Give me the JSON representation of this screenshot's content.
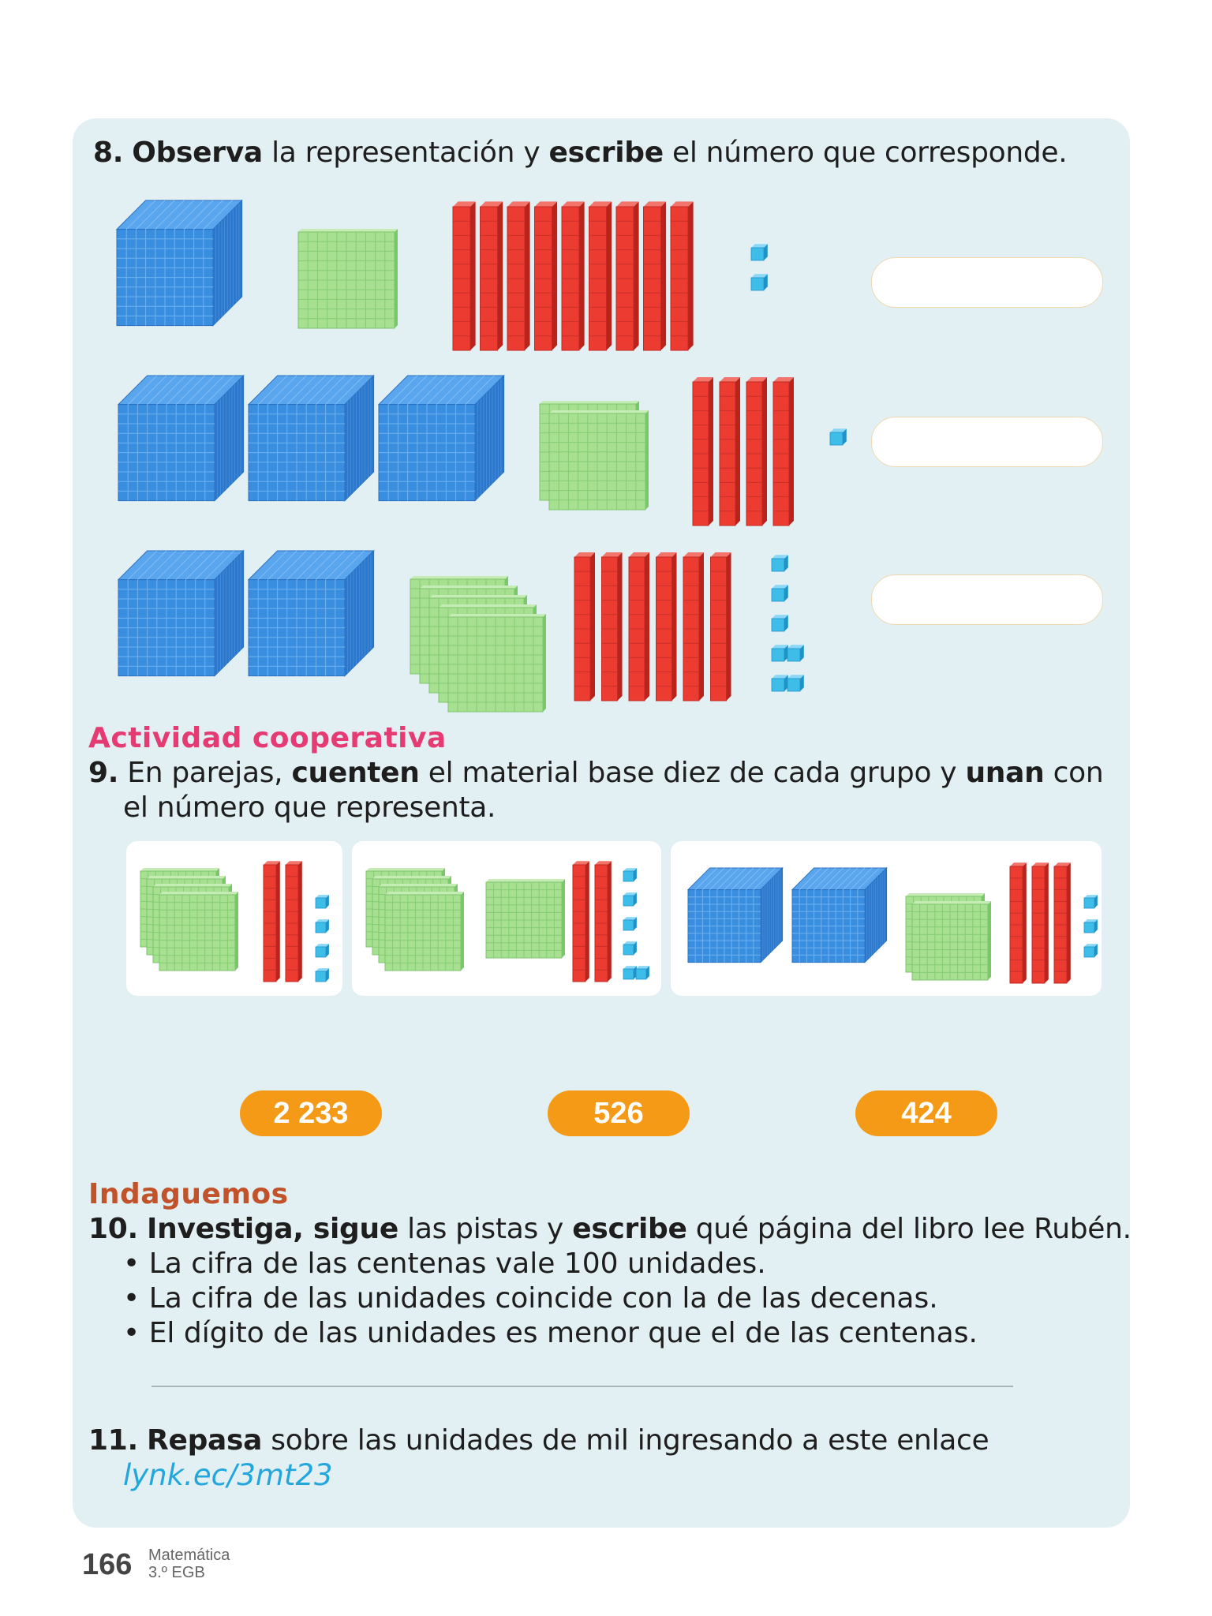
{
  "exercise8": {
    "number": "8.",
    "bold1": "Observa",
    "text1": " la representación y ",
    "bold2": "escribe",
    "text2": " el número que corresponde.",
    "rows": [
      {
        "thousands": 1,
        "hundreds": 1,
        "tens": 9,
        "units": 2
      },
      {
        "thousands": 3,
        "hundreds": 2,
        "tens": 4,
        "units": 1
      },
      {
        "thousands": 2,
        "hundreds": 5,
        "tens": 6,
        "units": 7
      }
    ]
  },
  "cooperative": {
    "heading": "Actividad cooperativa",
    "number": "9.",
    "text1": " En parejas, ",
    "bold1": "cuenten",
    "text2": " el material base diez de cada grupo y ",
    "bold2": "unan",
    "text3": " con",
    "line2": "el número que representa.",
    "groups": [
      {
        "thousands": 0,
        "hundreds": 4,
        "tens": 2,
        "units": 4
      },
      {
        "thousands": 0,
        "hundreds": 5,
        "tens": 2,
        "units": 6
      },
      {
        "thousands": 2,
        "hundreds": 2,
        "tens": 3,
        "units": 3
      }
    ],
    "options": [
      "2 233",
      "526",
      "424"
    ]
  },
  "inquiry": {
    "heading": "Indaguemos",
    "number": "10.",
    "bold1": "Investiga, sigue",
    "text1": " las pistas y ",
    "bold2": "escribe",
    "text2": " qué página del libro lee Rubén.",
    "clues": [
      "La cifra de las centenas vale 100 unidades.",
      "La cifra de las unidades coincide con la de las decenas.",
      "El dígito de las unidades es menor que el de las centenas."
    ]
  },
  "exercise11": {
    "number": "11.",
    "bold1": "Repasa",
    "text1": " sobre las unidades de mil ingresando a este enlace",
    "link": "lynk.ec/3mt23"
  },
  "footer": {
    "page": "166",
    "subject": "Matemática",
    "grade": "3.º EGB"
  },
  "colors": {
    "panel": "#e2eff3",
    "thousands_block": "#3a8ee0",
    "hundreds_flat": "#a6e090",
    "tens_rod": "#ec3b30",
    "unit_cube": "#3fbde9",
    "cooperative_heading": "#e63a73",
    "inquiry_heading": "#c2522a",
    "option_pill": "#f59a16",
    "link": "#22a6dc"
  }
}
